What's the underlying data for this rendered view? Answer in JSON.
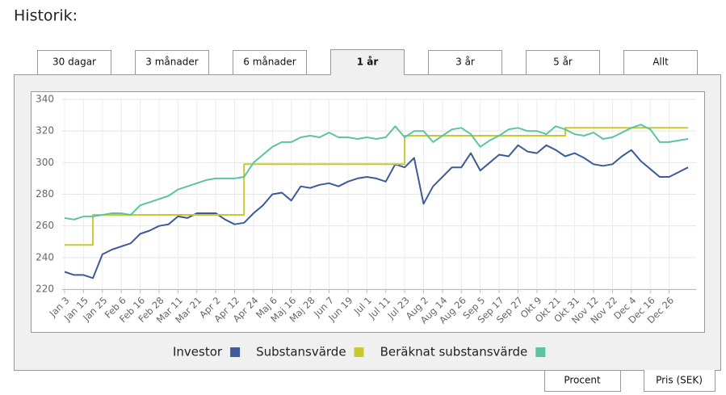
{
  "header": {
    "title": "Historik:"
  },
  "tabs": [
    "30 dagar",
    "3 månader",
    "6 månader",
    "1 år",
    "3 år",
    "5 år",
    "Allt"
  ],
  "bottom_tabs": [
    "Procent",
    "Pris (SEK)"
  ],
  "chart_data": {
    "type": "line",
    "grid": true,
    "categories": [
      "Jan 3",
      null,
      "Jan 15",
      null,
      "Jan 25",
      null,
      "Feb 6",
      null,
      "Feb 16",
      null,
      "Feb 28",
      null,
      "Mar 11",
      null,
      "Mar 21",
      null,
      "Apr 2",
      null,
      "Apr 12",
      null,
      "Apr 24",
      null,
      "Maj 6",
      null,
      "Maj 16",
      null,
      "Maj 28",
      null,
      "Jun 7",
      null,
      "Jun 19",
      null,
      "Jul 1",
      null,
      "Jul 11",
      null,
      "Jul 23",
      null,
      "Aug 2",
      null,
      "Aug 14",
      null,
      "Aug 26",
      null,
      "Sep 5",
      null,
      "Sep 17",
      null,
      "Sep 27",
      null,
      "Okt 9",
      null,
      "Okt 21",
      null,
      "Okt 31",
      null,
      "Nov 12",
      null,
      "Nov 22",
      null,
      "Dec 4",
      null,
      "Dec 16",
      null,
      "Dec 26",
      null,
      null
    ],
    "ylim": [
      220,
      340
    ],
    "yticks": [
      220,
      240,
      260,
      280,
      300,
      320,
      340
    ],
    "series": [
      {
        "name": "Investor",
        "color": "#3d5a99",
        "values": [
          231,
          229,
          229,
          227,
          242,
          245,
          247,
          249,
          255,
          257,
          260,
          261,
          266,
          265,
          268,
          268,
          268,
          264,
          261,
          262,
          268,
          273,
          280,
          281,
          276,
          285,
          284,
          286,
          287,
          285,
          288,
          290,
          291,
          290,
          288,
          299,
          297,
          303,
          274,
          285,
          291,
          297,
          297,
          306,
          295,
          300,
          305,
          304,
          311,
          307,
          306,
          311,
          308,
          304,
          306,
          303,
          299,
          298,
          299,
          304,
          308,
          301,
          296,
          291,
          291,
          294,
          297
        ]
      },
      {
        "name": "Substansvärde",
        "color": "#c8c832",
        "step": true,
        "values": [
          248,
          248,
          248,
          267,
          267,
          267,
          267,
          267,
          267,
          267,
          267,
          267,
          267,
          267,
          267,
          267,
          267,
          267,
          267,
          299,
          299,
          299,
          299,
          299,
          299,
          299,
          299,
          299,
          299,
          299,
          299,
          299,
          299,
          299,
          299,
          299,
          317,
          317,
          317,
          317,
          317,
          317,
          317,
          317,
          317,
          317,
          317,
          317,
          317,
          317,
          317,
          317,
          317,
          322,
          322,
          322,
          322,
          322,
          322,
          322,
          322,
          322,
          322,
          322,
          322,
          322,
          322
        ]
      },
      {
        "name": "Beräknat substansvärde",
        "color": "#5cc49e",
        "values": [
          265,
          264,
          266,
          266,
          267,
          268,
          268,
          267,
          273,
          275,
          277,
          279,
          283,
          285,
          287,
          289,
          290,
          290,
          290,
          291,
          300,
          305,
          310,
          313,
          313,
          316,
          317,
          316,
          319,
          316,
          316,
          315,
          316,
          315,
          316,
          323,
          316,
          320,
          320,
          313,
          317,
          321,
          322,
          318,
          310,
          314,
          317,
          321,
          322,
          320,
          320,
          318,
          323,
          321,
          318,
          317,
          319,
          315,
          316,
          319,
          322,
          324,
          321,
          313,
          313,
          314,
          315
        ]
      }
    ]
  }
}
